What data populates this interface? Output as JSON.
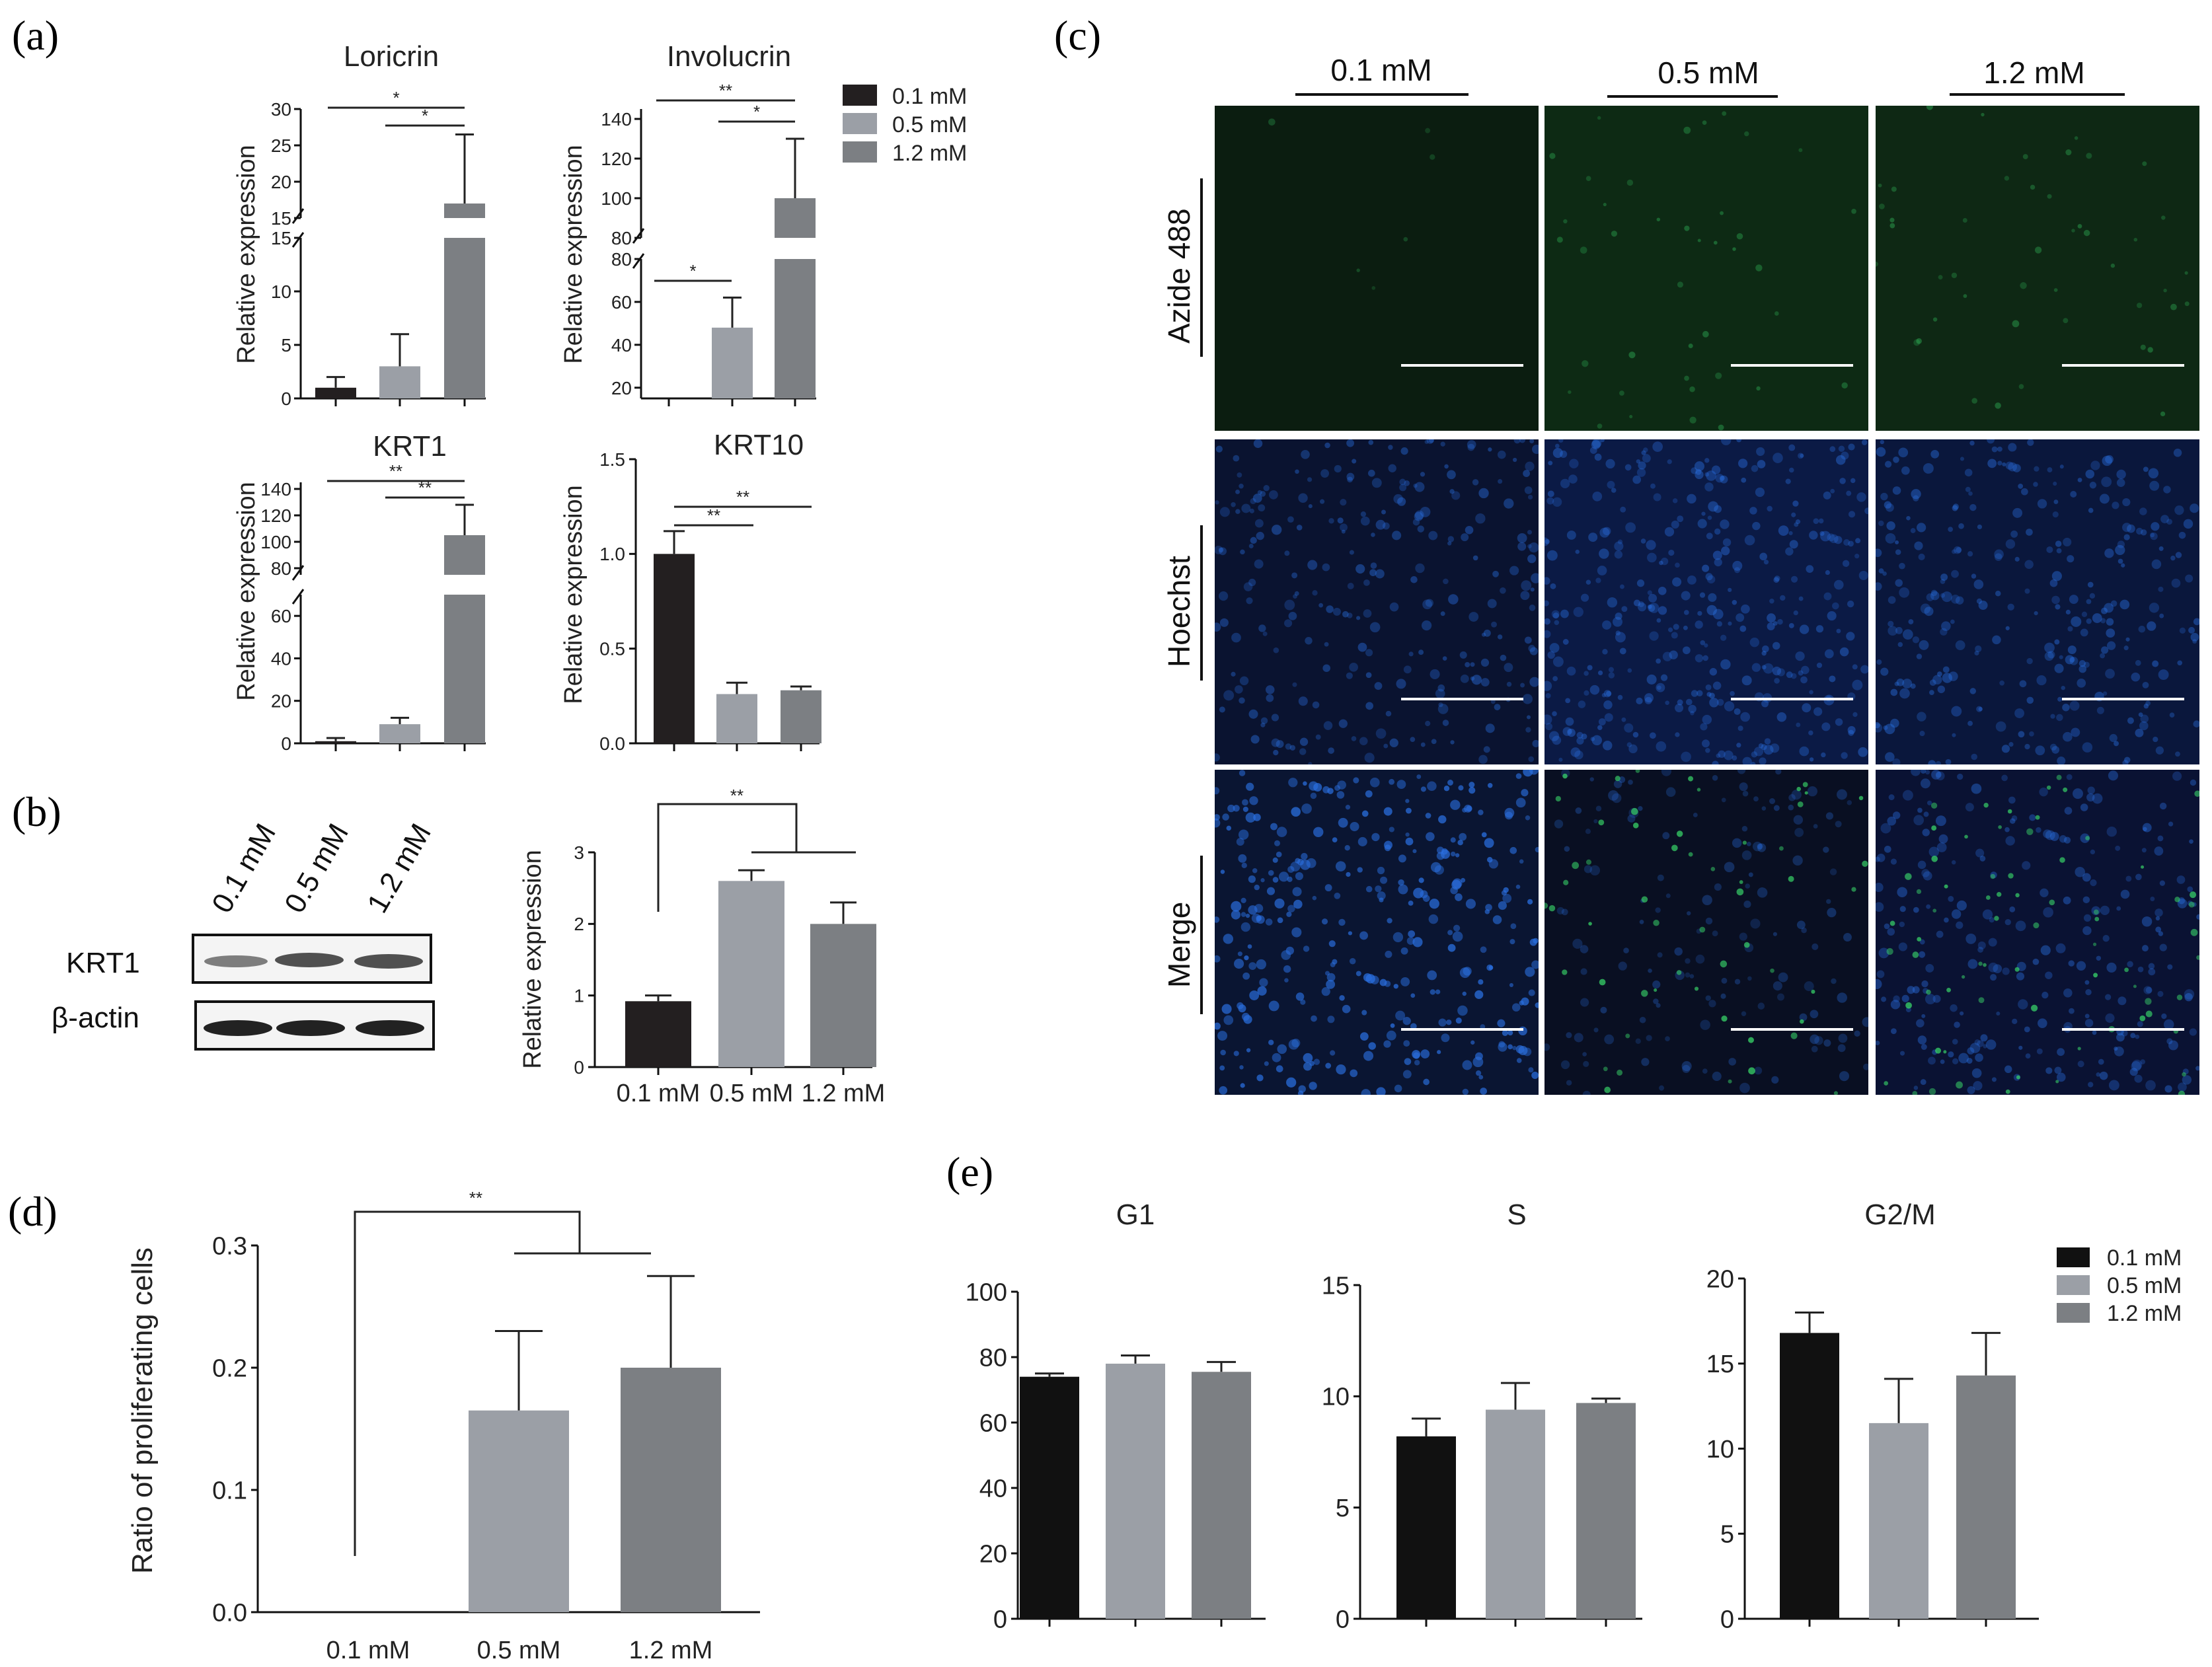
{
  "panel_labels": {
    "a": "(a)",
    "b": "(b)",
    "c": "(c)",
    "d": "(d)",
    "e": "(e)"
  },
  "colors": {
    "c01": "#231f20",
    "c05": "#9b9fa6",
    "c12": "#7c7f83",
    "black": "#111111"
  },
  "legend_top": [
    "0.1 mM",
    "0.5 mM",
    "1.2 mM"
  ],
  "legend_e": [
    "0.1 mM",
    "0.5 mM",
    "1.2 mM"
  ],
  "chart_data": [
    {
      "id": "loricrin",
      "type": "bar",
      "title": "Loricrin",
      "ylabel": "Relative expression",
      "categories": [
        "0.1 mM",
        "0.5 mM",
        "1.2 mM"
      ],
      "values": [
        1.0,
        3.0,
        17.0
      ],
      "errors": [
        1.0,
        3.0,
        9.5
      ],
      "broken_axis": true,
      "lower_range": [
        0,
        15
      ],
      "upper_range": [
        15,
        30
      ],
      "lower_ticks": [
        "0",
        "5",
        "10",
        "15"
      ],
      "upper_ticks": [
        "15",
        "20",
        "25",
        "30"
      ],
      "significance": [
        "*",
        "*"
      ]
    },
    {
      "id": "involucrin",
      "type": "bar",
      "title": "Involucrin",
      "ylabel": "Relative expression",
      "categories": [
        "0.1 mM",
        "0.5 mM",
        "1.2 mM"
      ],
      "values": [
        0,
        48,
        100
      ],
      "errors": [
        0,
        14,
        30
      ],
      "broken_axis": true,
      "lower_range": [
        15,
        80
      ],
      "upper_range": [
        80,
        145
      ],
      "lower_ticks": [
        "20",
        "40",
        "60",
        "80"
      ],
      "upper_ticks": [
        "80",
        "100",
        "120",
        "140"
      ],
      "significance": [
        "**",
        "*",
        "*"
      ]
    },
    {
      "id": "krt1",
      "type": "bar",
      "title": "KRT1",
      "ylabel": "Relative expression",
      "categories": [
        "0.1 mM",
        "0.5 mM",
        "1.2 mM"
      ],
      "values": [
        1,
        9,
        105
      ],
      "errors": [
        1.5,
        3,
        23
      ],
      "broken_axis": true,
      "lower_range": [
        0,
        70
      ],
      "upper_range": [
        75,
        145
      ],
      "lower_ticks": [
        "0",
        "20",
        "40",
        "60"
      ],
      "upper_ticks": [
        "80",
        "100",
        "120",
        "140"
      ],
      "significance": [
        "**",
        "**"
      ]
    },
    {
      "id": "krt10",
      "type": "bar",
      "title": "KRT10",
      "ylabel": "Relative expression",
      "categories": [
        "0.1 mM",
        "0.5 mM",
        "1.2 mM"
      ],
      "values": [
        1.0,
        0.26,
        0.28
      ],
      "errors": [
        0.12,
        0.06,
        0.02
      ],
      "ylim": [
        0,
        1.5
      ],
      "ticks": [
        "0.0",
        "0.5",
        "1.0",
        "1.5"
      ],
      "significance": [
        "**",
        "**"
      ]
    },
    {
      "id": "b_bar",
      "type": "bar",
      "title": "",
      "ylabel": "Relative expression",
      "categories": [
        "0.1 mM",
        "0.5 mM",
        "1.2 mM"
      ],
      "values": [
        0.92,
        2.6,
        2.0
      ],
      "errors": [
        0.08,
        0.15,
        0.3
      ],
      "ylim": [
        0,
        3
      ],
      "ticks": [
        "0",
        "1",
        "2",
        "3"
      ],
      "significance": [
        "**"
      ]
    },
    {
      "id": "d_bar",
      "type": "bar",
      "title": "",
      "ylabel": "Ratio of proliferating cells",
      "categories": [
        "0.1 mM",
        "0.5 mM",
        "1.2 mM"
      ],
      "values": [
        0,
        0.165,
        0.2
      ],
      "errors": [
        0,
        0.065,
        0.075
      ],
      "ylim": [
        0,
        0.3
      ],
      "ticks": [
        "0.0",
        "0.1",
        "0.2",
        "0.3"
      ],
      "significance": [
        "**"
      ]
    },
    {
      "id": "g1",
      "type": "bar",
      "title": "G1",
      "ylabel": "",
      "categories": [
        "0.1 mM",
        "0.5 mM",
        "1.2 mM"
      ],
      "values": [
        74,
        78,
        75.5
      ],
      "errors": [
        1,
        2.5,
        3
      ],
      "ylim": [
        0,
        100
      ],
      "ticks": [
        "0",
        "20",
        "40",
        "60",
        "80",
        "100"
      ]
    },
    {
      "id": "s",
      "type": "bar",
      "title": "S",
      "ylabel": "",
      "categories": [
        "0.1 mM",
        "0.5 mM",
        "1.2 mM"
      ],
      "values": [
        8.2,
        9.4,
        9.7
      ],
      "errors": [
        0.8,
        1.2,
        0.2
      ],
      "ylim": [
        0,
        15
      ],
      "ticks": [
        "0",
        "5",
        "10",
        "15"
      ]
    },
    {
      "id": "g2m",
      "type": "bar",
      "title": "G2/M",
      "ylabel": "",
      "categories": [
        "0.1 mM",
        "0.5 mM",
        "1.2 mM"
      ],
      "values": [
        16.8,
        11.5,
        14.3
      ],
      "errors": [
        1.2,
        2.6,
        2.5
      ],
      "ylim": [
        0,
        20
      ],
      "ticks": [
        "0",
        "5",
        "10",
        "15",
        "20"
      ]
    }
  ],
  "western": {
    "lanes": [
      "0.1 mM",
      "0.5 mM",
      "1.2 mM"
    ],
    "rows": [
      "KRT1",
      "β-actin"
    ]
  },
  "micrographs": {
    "columns": [
      "0.1 mM",
      "0.5 mM",
      "1.2 mM"
    ],
    "rows": [
      "Azide 488",
      "Hoechst",
      "Merge"
    ]
  }
}
